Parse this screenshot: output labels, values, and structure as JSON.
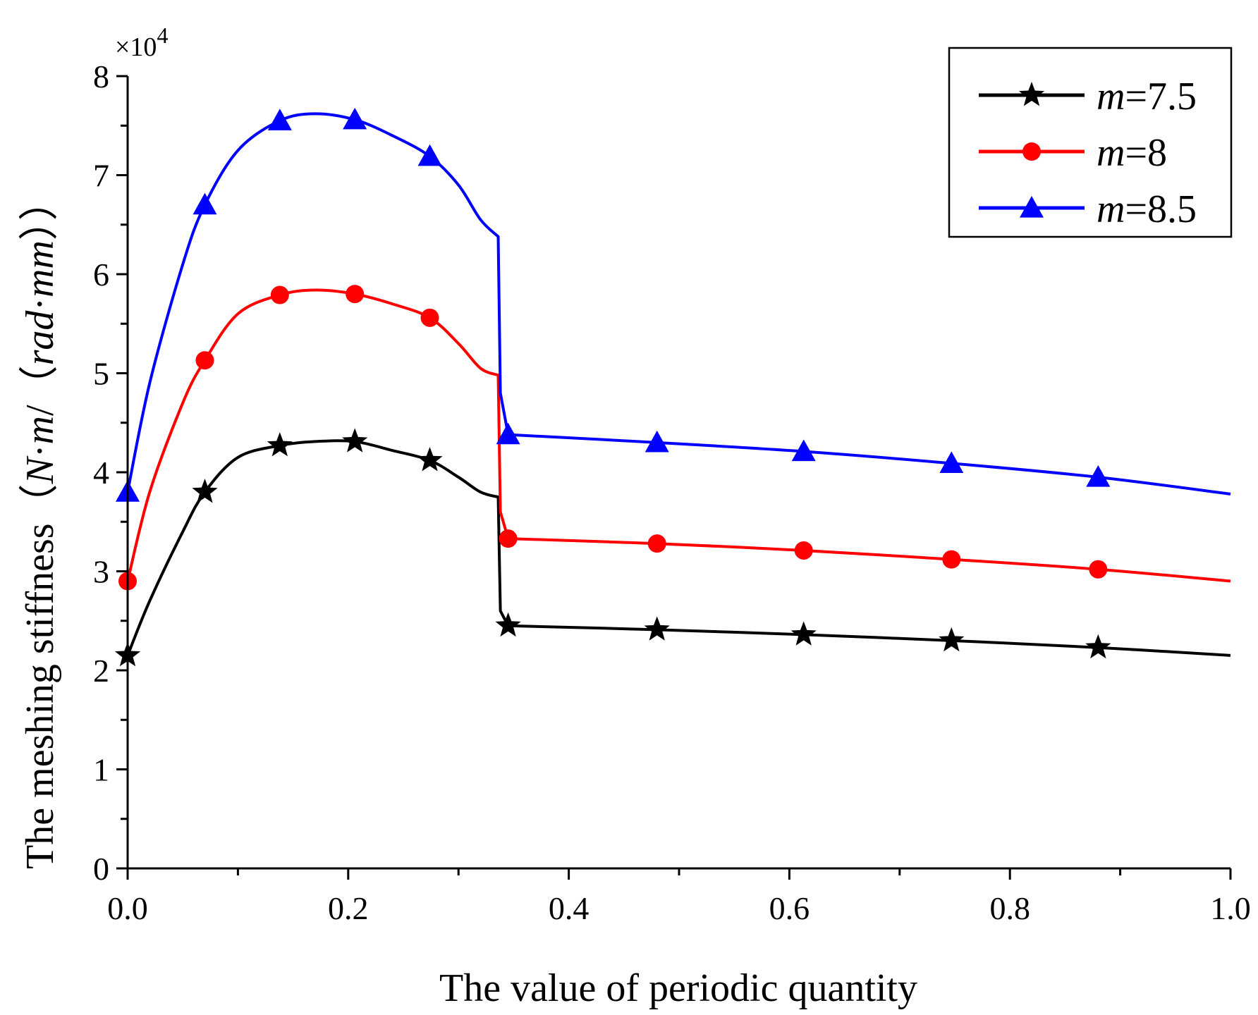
{
  "chart_data": {
    "type": "line",
    "title": "",
    "xlabel": "The value of periodic quantity",
    "ylabel": {
      "prefix": "The meshing stiffness（",
      "var_n": "N",
      "dot1": "·",
      "var_m": "m",
      "mid": "/（",
      "var_rad": "rad",
      "dot2": "·",
      "var_mm": "mm",
      "suffix": "））"
    },
    "y_scale": {
      "base": "×10",
      "exponent": "4"
    },
    "xlim": [
      0.0,
      1.0
    ],
    "ylim": [
      0,
      8
    ],
    "x_ticks": [
      {
        "value": 0.0,
        "label": "0.0"
      },
      {
        "value": 0.2,
        "label": "0.2"
      },
      {
        "value": 0.4,
        "label": "0.4"
      },
      {
        "value": 0.6,
        "label": "0.6"
      },
      {
        "value": 0.8,
        "label": "0.8"
      },
      {
        "value": 1.0,
        "label": "1.0"
      }
    ],
    "y_ticks": [
      {
        "value": 0,
        "label": "0"
      },
      {
        "value": 1,
        "label": "1"
      },
      {
        "value": 2,
        "label": "2"
      },
      {
        "value": 3,
        "label": "3"
      },
      {
        "value": 4,
        "label": "4"
      },
      {
        "value": 5,
        "label": "5"
      },
      {
        "value": 6,
        "label": "6"
      },
      {
        "value": 7,
        "label": "7"
      },
      {
        "value": 8,
        "label": "8"
      }
    ],
    "grid": false,
    "legend_position": "top-right",
    "series": [
      {
        "name": "m=7.5",
        "legend_var": "m",
        "legend_rest": "=7.5",
        "color": "#000000",
        "marker": "star",
        "line": [
          [
            0.0,
            2.15
          ],
          [
            0.02,
            2.7
          ],
          [
            0.05,
            3.4
          ],
          [
            0.07,
            3.8
          ],
          [
            0.1,
            4.15
          ],
          [
            0.138,
            4.27
          ],
          [
            0.17,
            4.31
          ],
          [
            0.206,
            4.31
          ],
          [
            0.24,
            4.22
          ],
          [
            0.274,
            4.12
          ],
          [
            0.3,
            3.95
          ],
          [
            0.32,
            3.8
          ],
          [
            0.336,
            3.75
          ],
          [
            0.338,
            2.6
          ],
          [
            0.345,
            2.45
          ],
          [
            0.48,
            2.41
          ],
          [
            0.613,
            2.36
          ],
          [
            0.747,
            2.3
          ],
          [
            0.88,
            2.23
          ],
          [
            1.0,
            2.15
          ]
        ],
        "markers": [
          [
            0.0,
            2.15
          ],
          [
            0.07,
            3.8
          ],
          [
            0.138,
            4.27
          ],
          [
            0.206,
            4.31
          ],
          [
            0.274,
            4.12
          ],
          [
            0.345,
            2.45
          ],
          [
            0.48,
            2.41
          ],
          [
            0.613,
            2.36
          ],
          [
            0.747,
            2.3
          ],
          [
            0.88,
            2.23
          ]
        ]
      },
      {
        "name": "m=8",
        "legend_var": "m",
        "legend_rest": "=8",
        "color": "#ff0000",
        "marker": "circle",
        "line": [
          [
            0.0,
            2.9
          ],
          [
            0.02,
            3.8
          ],
          [
            0.05,
            4.7
          ],
          [
            0.07,
            5.13
          ],
          [
            0.1,
            5.6
          ],
          [
            0.138,
            5.79
          ],
          [
            0.17,
            5.84
          ],
          [
            0.206,
            5.8
          ],
          [
            0.24,
            5.7
          ],
          [
            0.274,
            5.56
          ],
          [
            0.3,
            5.3
          ],
          [
            0.32,
            5.05
          ],
          [
            0.336,
            4.98
          ],
          [
            0.338,
            3.6
          ],
          [
            0.345,
            3.33
          ],
          [
            0.48,
            3.28
          ],
          [
            0.613,
            3.21
          ],
          [
            0.747,
            3.12
          ],
          [
            0.88,
            3.02
          ],
          [
            1.0,
            2.9
          ]
        ],
        "markers": [
          [
            0.0,
            2.9
          ],
          [
            0.07,
            5.13
          ],
          [
            0.138,
            5.79
          ],
          [
            0.206,
            5.8
          ],
          [
            0.274,
            5.56
          ],
          [
            0.345,
            3.33
          ],
          [
            0.48,
            3.28
          ],
          [
            0.613,
            3.21
          ],
          [
            0.747,
            3.12
          ],
          [
            0.88,
            3.02
          ]
        ]
      },
      {
        "name": "m=8.5",
        "legend_var": "m",
        "legend_rest": "=8.5",
        "color": "#0000ff",
        "marker": "triangle",
        "line": [
          [
            0.0,
            3.8
          ],
          [
            0.02,
            4.9
          ],
          [
            0.05,
            6.1
          ],
          [
            0.07,
            6.7
          ],
          [
            0.1,
            7.25
          ],
          [
            0.138,
            7.55
          ],
          [
            0.17,
            7.62
          ],
          [
            0.206,
            7.56
          ],
          [
            0.24,
            7.4
          ],
          [
            0.274,
            7.19
          ],
          [
            0.3,
            6.9
          ],
          [
            0.32,
            6.55
          ],
          [
            0.336,
            6.38
          ],
          [
            0.338,
            4.8
          ],
          [
            0.345,
            4.38
          ],
          [
            0.48,
            4.3
          ],
          [
            0.613,
            4.21
          ],
          [
            0.747,
            4.09
          ],
          [
            0.88,
            3.95
          ],
          [
            1.0,
            3.78
          ]
        ],
        "markers": [
          [
            0.0,
            3.8
          ],
          [
            0.07,
            6.7
          ],
          [
            0.138,
            7.55
          ],
          [
            0.206,
            7.56
          ],
          [
            0.274,
            7.19
          ],
          [
            0.345,
            4.38
          ],
          [
            0.48,
            4.3
          ],
          [
            0.613,
            4.21
          ],
          [
            0.747,
            4.09
          ],
          [
            0.88,
            3.95
          ]
        ]
      }
    ]
  }
}
